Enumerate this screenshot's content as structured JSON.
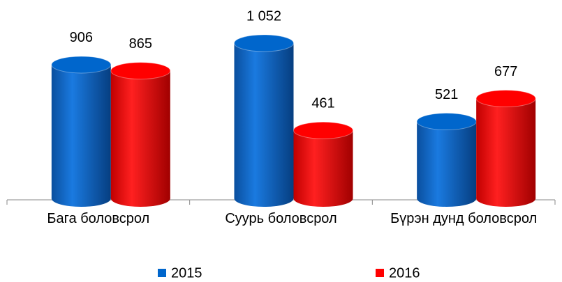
{
  "chart_data": {
    "type": "bar3d",
    "categories": [
      "Бага боловсрол",
      "Суурь боловсрол",
      "Бүрэн дунд боловсрол"
    ],
    "series": [
      {
        "name": "2015",
        "color": "#0066cc",
        "values": [
          906,
          1052,
          521
        ],
        "value_labels": [
          "906",
          "1 052",
          "521"
        ]
      },
      {
        "name": "2016",
        "color": "#ff0000",
        "values": [
          865,
          461,
          677
        ],
        "value_labels": [
          "865",
          "461",
          "677"
        ]
      }
    ],
    "legend": "bottom"
  }
}
